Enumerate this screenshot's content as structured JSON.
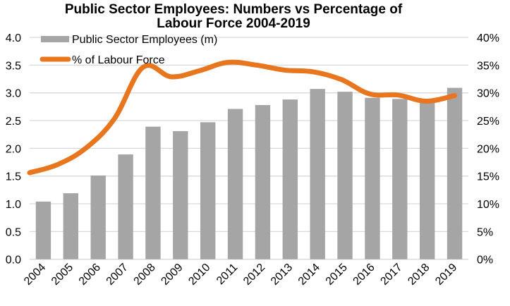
{
  "chart_data": {
    "type": "bar+line",
    "title_lines": [
      "Public Sector Employees: Numbers vs Percentage of",
      "Labour Force 2004-2019"
    ],
    "categories": [
      "2004",
      "2005",
      "2006",
      "2007",
      "2008",
      "2009",
      "2010",
      "2011",
      "2012",
      "2013",
      "2014",
      "2015",
      "2016",
      "2017",
      "2018",
      "2019"
    ],
    "series": [
      {
        "name": "Public Sector Employees (m)",
        "type": "bar",
        "axis": "left",
        "color": "#A5A5A5",
        "values": [
          1.04,
          1.19,
          1.51,
          1.89,
          2.39,
          2.31,
          2.47,
          2.71,
          2.78,
          2.88,
          3.07,
          3.02,
          2.91,
          2.89,
          2.88,
          3.09
        ]
      },
      {
        "name": "% of Labour Force",
        "type": "line",
        "axis": "right",
        "color": "#E8761E",
        "values": [
          15.6,
          17.1,
          20.1,
          25.4,
          34.6,
          32.9,
          34.0,
          35.5,
          35.0,
          34.1,
          33.8,
          32.4,
          29.8,
          29.6,
          28.5,
          29.5
        ]
      }
    ],
    "y_left": {
      "range": [
        0,
        4
      ],
      "ticks": [
        "0.0",
        "0.5",
        "1.0",
        "1.5",
        "2.0",
        "2.5",
        "3.0",
        "3.5",
        "4.0"
      ],
      "label": ""
    },
    "y_right": {
      "range": [
        0,
        40
      ],
      "ticks": [
        "0%",
        "5%",
        "10%",
        "15%",
        "20%",
        "25%",
        "30%",
        "35%",
        "40%"
      ],
      "label": ""
    },
    "xlabel": "",
    "grid": true,
    "legend_position": "top-left"
  }
}
